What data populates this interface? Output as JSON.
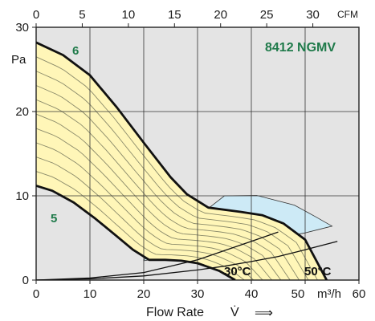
{
  "chart_data": {
    "type": "line",
    "title": "8412 NGMV",
    "xlabel": "Flow Rate",
    "ylabel": "Pa",
    "x_unit_label": "m³/h",
    "x2_unit_label": "CFM",
    "xlim": [
      0,
      60
    ],
    "ylim": [
      0,
      30
    ],
    "x2lim": [
      0,
      35
    ],
    "x_ticks": [
      "0",
      "10",
      "20",
      "30",
      "40",
      "50",
      "60"
    ],
    "x2_ticks": [
      "0",
      "5",
      "10",
      "15",
      "20",
      "25",
      "30"
    ],
    "y_ticks": [
      "0",
      "10",
      "20",
      "30"
    ],
    "grid": true,
    "series": [
      {
        "name": "6",
        "x": [
          0,
          5,
          10,
          15,
          20,
          25,
          28,
          32,
          38,
          42,
          46,
          50,
          54
        ],
        "y": [
          28.2,
          26.7,
          24.3,
          20.5,
          16.3,
          12.2,
          10.2,
          8.6,
          8.1,
          7.7,
          6.7,
          4.8,
          0
        ]
      },
      {
        "name": "5",
        "x": [
          0,
          3,
          7,
          11,
          15,
          18,
          21,
          24,
          27,
          30,
          34,
          37
        ],
        "y": [
          11.2,
          10.6,
          9.2,
          7.3,
          5.2,
          3.6,
          2.4,
          2.4,
          2.3,
          2.0,
          1.1,
          0
        ]
      },
      {
        "name": "30°C",
        "x": [
          0,
          10,
          20,
          30,
          35,
          40,
          45
        ],
        "y": [
          0,
          0.25,
          0.9,
          2.4,
          3.5,
          4.6,
          5.7
        ]
      },
      {
        "name": "50°C",
        "x": [
          0,
          10,
          20,
          30,
          35,
          40,
          45,
          50,
          56
        ],
        "y": [
          0,
          0.14,
          0.5,
          1.2,
          1.65,
          2.2,
          2.8,
          3.6,
          4.6
        ]
      }
    ],
    "labels": {
      "curve_high": "6",
      "curve_low": "5",
      "temp_low": "30°C",
      "temp_high": "50°C"
    },
    "colors": {
      "fan_region": "#fff6b8",
      "duct_region": "#cdeaf6",
      "plot_background": "#e4e4e4",
      "grid": "#333333",
      "curve": "#111111",
      "label_green": "#1f7a4a"
    }
  },
  "footer": {
    "flow_symbol": "V̇",
    "arrow": "⟹"
  }
}
